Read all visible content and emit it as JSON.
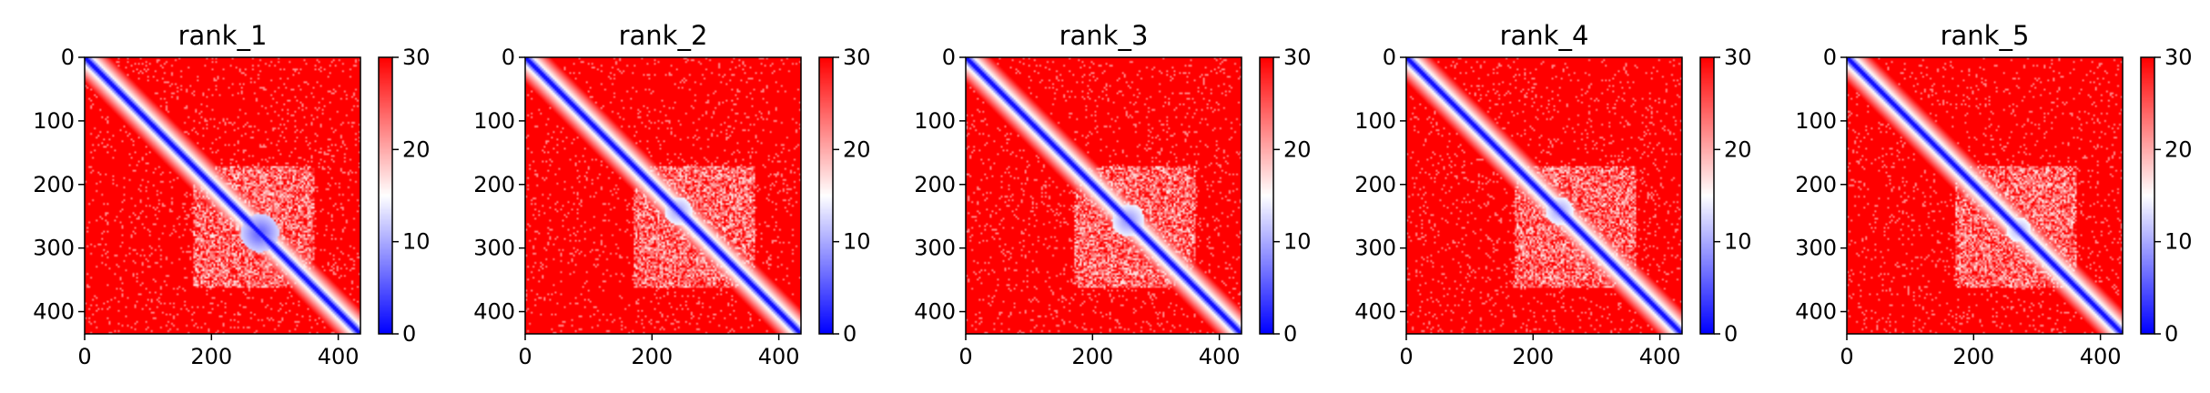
{
  "chart_data": {
    "type": "heatmap",
    "colormap": {
      "name": "bwr",
      "low": "#0000ff",
      "mid": "#ffffff",
      "high": "#ff0000"
    },
    "colorbar": {
      "min": 0,
      "max": 30,
      "ticks": [
        0,
        10,
        20,
        30
      ]
    },
    "x_ticks": [
      0,
      200,
      400
    ],
    "y_ticks": [
      0,
      100,
      200,
      300,
      400
    ],
    "xlim": [
      0,
      435
    ],
    "ylim": [
      435,
      0
    ],
    "grid": false,
    "panels": [
      {
        "title": "rank_1",
        "n": 435,
        "blob_center": [
          275,
          275
        ],
        "blob_radius": 30,
        "blob_value": 5
      },
      {
        "title": "rank_2",
        "n": 435,
        "blob_center": [
          240,
          240
        ],
        "blob_radius": 22,
        "blob_value": 9
      },
      {
        "title": "rank_3",
        "n": 435,
        "blob_center": [
          255,
          255
        ],
        "blob_radius": 26,
        "blob_value": 8
      },
      {
        "title": "rank_4",
        "n": 435,
        "blob_center": [
          240,
          240
        ],
        "blob_radius": 22,
        "blob_value": 9
      },
      {
        "title": "rank_5",
        "n": 435,
        "blob_center": [
          270,
          270
        ],
        "blob_radius": 20,
        "blob_value": 10
      }
    ]
  }
}
